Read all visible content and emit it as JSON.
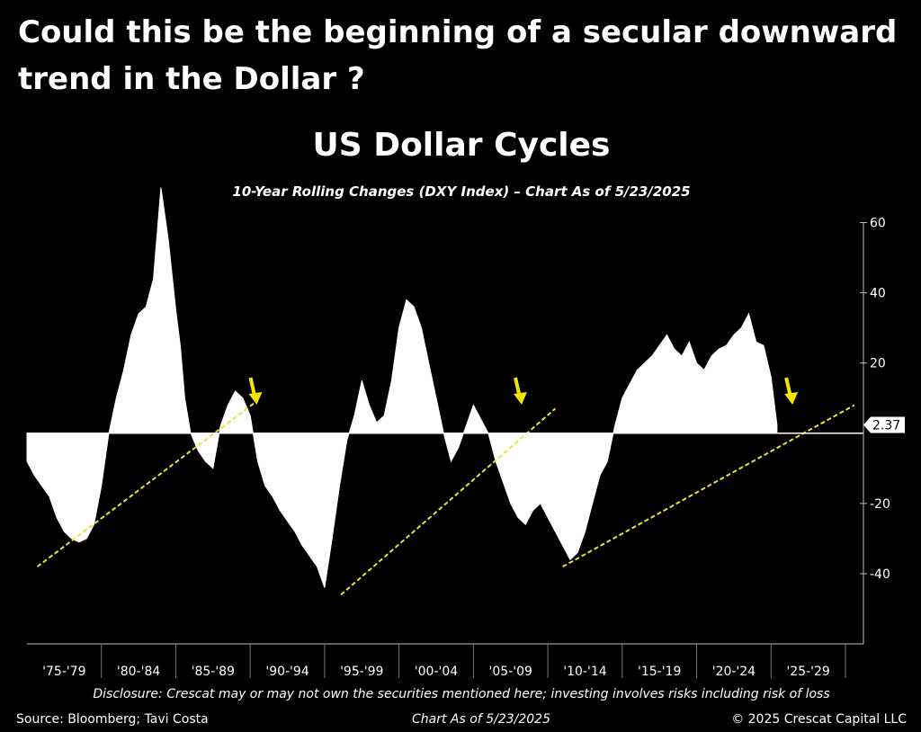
{
  "headline": "Could this be the beginning of a secular downward trend in the Dollar ?",
  "chart_data": {
    "type": "area",
    "title": "US Dollar Cycles",
    "subtitle": "10-Year Rolling Changes (DXY Index) – Chart As of 5/23/2025",
    "x_categories": [
      "'75-'79",
      "'80-'84",
      "'85-'89",
      "'90-'94",
      "'95-'99",
      "'00-'04",
      "'05-'09",
      "'10-'14",
      "'15-'19",
      "'20-'24",
      "'25-'29"
    ],
    "x_range": [
      1975,
      2030
    ],
    "y_ticks": [
      60,
      40,
      20,
      -20,
      -40
    ],
    "ylim": [
      -60,
      65
    ],
    "last_value_label": "2.37",
    "last_value": 2.37,
    "series": [
      {
        "x": [
          1975.0,
          1975.5,
          1976.0,
          1976.5,
          1977.0,
          1977.5,
          1978.0,
          1978.5,
          1979.0,
          1979.5,
          1980.0,
          1980.5,
          1981.0,
          1981.5,
          1982.0,
          1982.5,
          1983.0,
          1983.5,
          1984.0,
          1984.5,
          1985.0,
          1985.3,
          1985.6,
          1986.0,
          1986.5,
          1987.0,
          1987.5,
          1988.0,
          1988.5,
          1989.0,
          1989.5,
          1990.0,
          1990.5,
          1991.0,
          1991.5,
          1992.0,
          1992.5,
          1993.0,
          1993.5,
          1994.0,
          1994.5,
          1995.0,
          1995.5,
          1996.0,
          1996.5,
          1997.0,
          1997.5,
          1998.0,
          1998.5,
          1999.0,
          1999.5,
          2000.0,
          2000.5,
          2001.0,
          2001.5,
          2002.0,
          2002.5,
          2003.0,
          2003.5,
          2004.0,
          2004.5,
          2005.0,
          2005.5,
          2006.0,
          2006.5,
          2007.0,
          2007.5,
          2008.0,
          2008.5,
          2009.0,
          2009.5,
          2010.0,
          2010.5,
          2011.0,
          2011.5,
          2012.0,
          2012.5,
          2013.0,
          2013.5,
          2014.0,
          2014.5,
          2015.0,
          2015.5,
          2016.0,
          2016.5,
          2017.0,
          2017.5,
          2018.0,
          2018.5,
          2019.0,
          2019.5,
          2020.0,
          2020.5,
          2021.0,
          2021.5,
          2022.0,
          2022.5,
          2023.0,
          2023.5,
          2024.0,
          2024.5,
          2025.0,
          2025.4
        ],
        "values": [
          -8,
          -12,
          -15,
          -18,
          -24,
          -28,
          -30,
          -31,
          -30,
          -26,
          -15,
          0,
          10,
          18,
          28,
          34,
          36,
          44,
          70,
          55,
          35,
          25,
          10,
          0,
          -5,
          -8,
          -10,
          2,
          8,
          12,
          10,
          5,
          -8,
          -15,
          -18,
          -22,
          -25,
          -28,
          -32,
          -35,
          -38,
          -44,
          -30,
          -15,
          -2,
          5,
          15,
          8,
          3,
          5,
          15,
          30,
          38,
          36,
          30,
          20,
          10,
          0,
          -8,
          -4,
          2,
          8,
          4,
          0,
          -8,
          -14,
          -20,
          -24,
          -26,
          -22,
          -20,
          -24,
          -28,
          -32,
          -36,
          -34,
          -28,
          -20,
          -12,
          -8,
          2,
          10,
          14,
          18,
          20,
          22,
          25,
          28,
          24,
          22,
          26,
          20,
          18,
          22,
          24,
          25,
          28,
          30,
          34,
          26,
          25,
          16,
          2.37
        ]
      }
    ],
    "trendlines": [
      {
        "x": [
          1975.7,
          1990.4
        ],
        "y": [
          -38,
          9
        ]
      },
      {
        "x": [
          1996.1,
          2010.5
        ],
        "y": [
          -46,
          7
        ]
      },
      {
        "x": [
          2011.0,
          2030.6
        ],
        "y": [
          -38,
          8
        ]
      }
    ],
    "arrows_x": [
      1990.2,
      2008.0,
      2026.2
    ],
    "grid": false
  },
  "footer": {
    "disclosure": "Disclosure: Crescat may or may not own the securities mentioned here; investing involves risks including risk of loss",
    "source": "Source: Bloomberg; Tavi Costa",
    "chart_as_of": "Chart As of 5/23/2025",
    "copyright": "© 2025 Crescat Capital LLC"
  },
  "colors": {
    "background": "#000000",
    "area": "#ffffff",
    "trendline": "#e8e23a",
    "arrow": "#f2e600"
  }
}
